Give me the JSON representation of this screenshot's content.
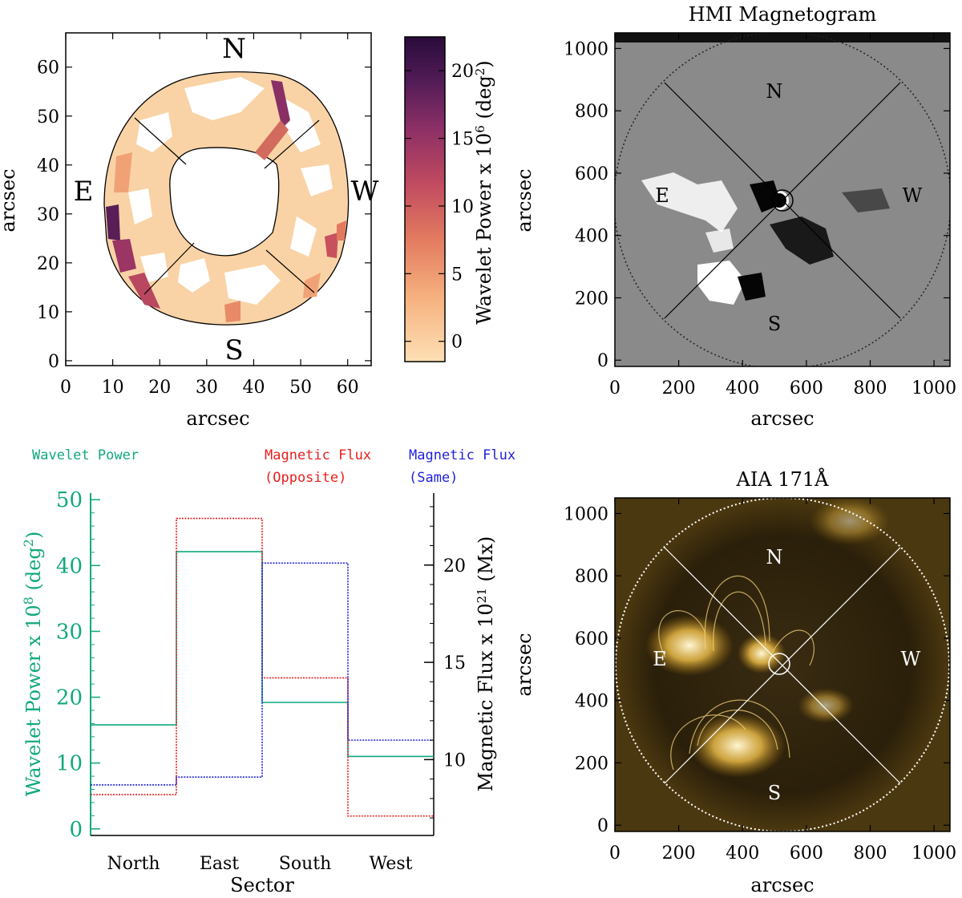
{
  "chart_data": [
    {
      "type": "heatmap",
      "id": "wavelet_map",
      "xlabel": "arcsec",
      "ylabel": "arcsec",
      "xlim": [
        0,
        65
      ],
      "ylim": [
        -1,
        67
      ],
      "xticks": [
        "0",
        "10",
        "20",
        "30",
        "40",
        "50",
        "60"
      ],
      "yticks": [
        "0",
        "10",
        "20",
        "30",
        "40",
        "50",
        "60"
      ],
      "sector_labels": [
        "N",
        "E",
        "W",
        "S"
      ],
      "colorbar": {
        "label": "Wavelet Power x 10",
        "exponent": "6",
        "unit_open": " (deg",
        "unit_sup": "2",
        "unit_close": ")",
        "range": [
          -1.5,
          22.5
        ],
        "ticks": [
          "0",
          "5",
          "10",
          "15",
          "20"
        ],
        "colors": [
          "#fde0b4",
          "#f6b07e",
          "#e27a5f",
          "#c04a60",
          "#8c2f66",
          "#4f1b55",
          "#2a0b3a"
        ]
      }
    },
    {
      "type": "image",
      "id": "hmi",
      "title": "HMI Magnetogram",
      "xlabel": "arcsec",
      "ylabel": "arcsec",
      "xlim": [
        0,
        1050
      ],
      "ylim": [
        -20,
        1050
      ],
      "xticks": [
        "0",
        "200",
        "400",
        "600",
        "800",
        "1000"
      ],
      "yticks": [
        "0",
        "200",
        "400",
        "600",
        "800",
        "1000"
      ],
      "sector_labels": [
        "N",
        "E",
        "W",
        "S"
      ]
    },
    {
      "type": "line",
      "id": "sector_chart",
      "xlabel": "Sector",
      "categories": [
        "North",
        "East",
        "South",
        "West"
      ],
      "legend": {
        "power": "Wavelet Power",
        "opp_line1": "Magnetic Flux",
        "opp_line2": "(Opposite)",
        "same_line1": "Magnetic Flux",
        "same_line2": "(Same)"
      },
      "left_axis": {
        "label": "Wavelet Power x 10",
        "exponent": "8",
        "unit_open": " (deg",
        "unit_sup": "2",
        "unit_close": ")",
        "range": [
          -1,
          51
        ],
        "ticks": [
          "0",
          "10",
          "20",
          "30",
          "40",
          "50"
        ],
        "color": "#11a87e"
      },
      "right_axis": {
        "label": "Magnetic Flux x 10",
        "exponent": "21",
        "unit": " (Mx)",
        "range": [
          6.1,
          23.7
        ],
        "ticks": [
          "10",
          "15",
          "20"
        ]
      },
      "series": [
        {
          "name": "Wavelet Power",
          "axis": "left",
          "color": "#11a87e",
          "values": [
            15.8,
            42.1,
            19.2,
            11.0
          ]
        },
        {
          "name": "Magnetic Flux (Opposite)",
          "axis": "right",
          "color": "#e8201e",
          "values": [
            8.2,
            22.4,
            14.2,
            7.1
          ]
        },
        {
          "name": "Magnetic Flux (Same)",
          "axis": "right",
          "color": "#2222dd",
          "values": [
            8.7,
            9.1,
            20.1,
            11.0
          ]
        }
      ]
    },
    {
      "type": "image",
      "id": "aia",
      "title": "AIA 171Å",
      "xlabel": "arcsec",
      "ylabel": "arcsec",
      "xlim": [
        0,
        1050
      ],
      "ylim": [
        -20,
        1050
      ],
      "xticks": [
        "0",
        "200",
        "400",
        "600",
        "800",
        "1000"
      ],
      "yticks": [
        "0",
        "200",
        "400",
        "600",
        "800",
        "1000"
      ],
      "sector_labels": [
        "N",
        "E",
        "W",
        "S"
      ]
    }
  ]
}
